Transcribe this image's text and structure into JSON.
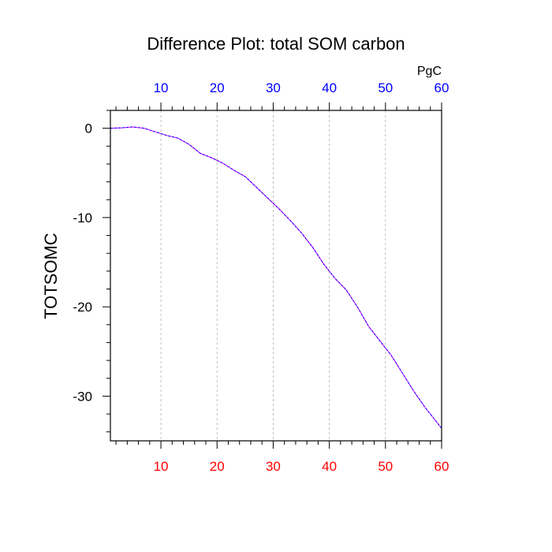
{
  "chart_data": {
    "type": "line",
    "title": "Difference Plot: total SOM carbon",
    "ylabel": "TOTSOMC",
    "top_axis_unit": "PgC",
    "xlim": [
      1,
      60
    ],
    "ylim": [
      -35,
      2
    ],
    "x_ticks": [
      10,
      20,
      30,
      40,
      50,
      60
    ],
    "x_tick_labels": [
      "10",
      "20",
      "30",
      "40",
      "50",
      "60"
    ],
    "y_ticks": [
      0,
      -10,
      -20,
      -30
    ],
    "y_tick_labels": [
      "0",
      "-10",
      "-20",
      "-30"
    ],
    "grid_x": true,
    "colors": {
      "bottom_ticks": "#ff0000",
      "top_ticks": "#0000ff",
      "line_primary": "#ff00ff",
      "line_secondary": "#0000ff"
    },
    "series": [
      {
        "x": [
          1,
          3,
          5,
          7,
          9,
          11,
          13,
          15,
          17,
          19,
          21,
          23,
          25,
          27,
          29,
          31,
          33,
          35,
          37,
          39,
          41,
          43,
          45,
          47,
          49,
          51,
          53,
          55,
          57,
          60
        ],
        "values": [
          0,
          0.05,
          0.15,
          0,
          -0.4,
          -0.8,
          -1.1,
          -1.8,
          -2.8,
          -3.3,
          -3.9,
          -4.7,
          -5.4,
          -6.6,
          -7.8,
          -9.0,
          -10.3,
          -11.7,
          -13.3,
          -15.2,
          -16.8,
          -18.1,
          -20.0,
          -22.2,
          -23.8,
          -25.4,
          -27.4,
          -29.4,
          -31.2,
          -33.6
        ]
      },
      {
        "x": [
          1,
          3,
          5,
          7,
          9,
          11,
          13,
          15,
          17,
          19,
          21,
          23,
          25,
          27,
          29,
          31,
          33,
          35,
          37,
          39,
          41,
          43,
          45,
          47,
          49,
          51,
          53,
          55,
          57,
          60
        ],
        "values": [
          0,
          0.05,
          0.15,
          0,
          -0.4,
          -0.8,
          -1.1,
          -1.8,
          -2.8,
          -3.3,
          -3.9,
          -4.7,
          -5.4,
          -6.6,
          -7.8,
          -9.0,
          -10.3,
          -11.7,
          -13.3,
          -15.2,
          -16.8,
          -18.1,
          -20.0,
          -22.2,
          -23.8,
          -25.4,
          -27.4,
          -29.4,
          -31.2,
          -33.6
        ]
      }
    ]
  }
}
